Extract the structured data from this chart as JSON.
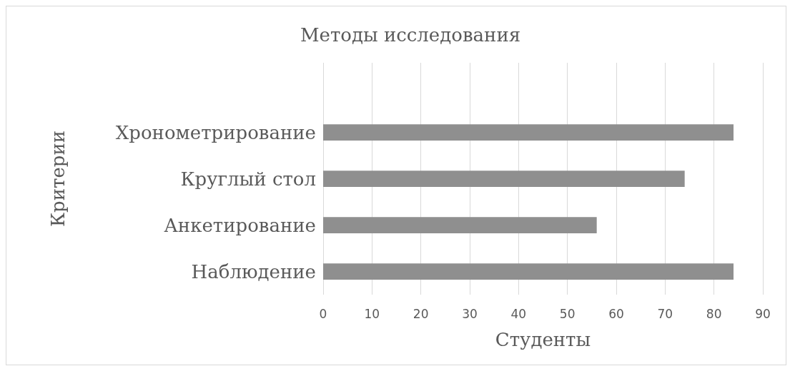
{
  "chart_data": {
    "type": "bar",
    "orientation": "horizontal",
    "title": "Методы исследования",
    "xlabel": "Студенты",
    "ylabel": "Критерии",
    "categories": [
      null,
      "Хронометрирование",
      "Круглый стол",
      "Анкетирование",
      "Наблюдение"
    ],
    "values": [
      null,
      84,
      74,
      56,
      84
    ],
    "color": "#8f8f8f",
    "xlim": [
      0,
      90
    ],
    "xticks": [
      0,
      10,
      20,
      30,
      40,
      50,
      60,
      70,
      80,
      90
    ],
    "grid": "x"
  }
}
